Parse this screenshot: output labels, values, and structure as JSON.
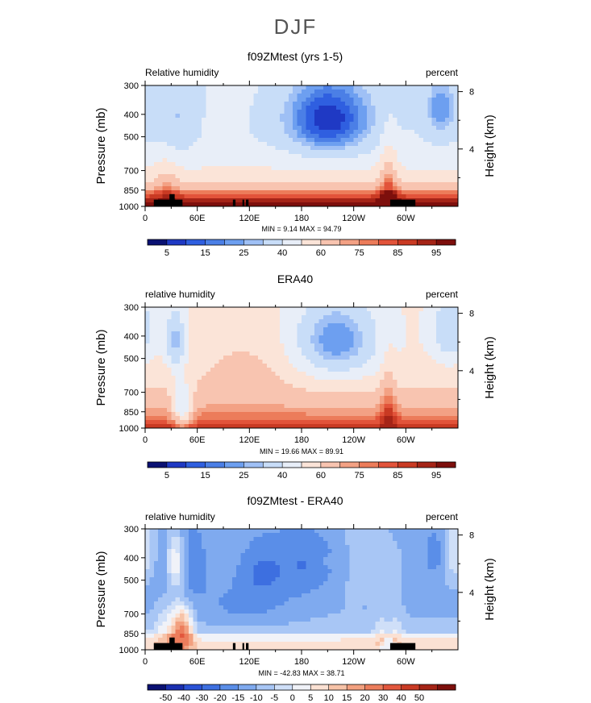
{
  "page_title": "DJF",
  "chart_data": [
    {
      "type": "heatmap",
      "title": "f09ZMtest (yrs 1-5)",
      "subtitle_left": "Relative humidity",
      "subtitle_right": "percent",
      "ylabel": "Pressure (mb)",
      "y2label": "Height (km)",
      "x_ticks": [
        "0",
        "60E",
        "120E",
        "180",
        "120W",
        "60W"
      ],
      "x_tick_lon": [
        0,
        60,
        120,
        180,
        240,
        300
      ],
      "xlim": [
        0,
        360
      ],
      "y_ticks": [
        300,
        400,
        500,
        700,
        850,
        1000
      ],
      "ylim": [
        1000,
        300
      ],
      "y2_ticks": [
        4,
        8
      ],
      "minmax_text": "MIN =    9.14   MAX =   94.79",
      "colorbar_labels": [
        "5",
        "15",
        "25",
        "40",
        "60",
        "75",
        "85",
        "95"
      ],
      "colorbar_colors": [
        "#0a1173",
        "#1f39c4",
        "#2f5fe0",
        "#4b7fe6",
        "#6d9ff0",
        "#9fc0f5",
        "#c8ddf8",
        "#e8eef8",
        "#fbe4d8",
        "#f8c4b0",
        "#f3a184",
        "#ec7c5a",
        "#e2533a",
        "#c93a23",
        "#a52417",
        "#7d0f0c"
      ],
      "topography": true,
      "field": "model"
    },
    {
      "type": "heatmap",
      "title": "ERA40",
      "subtitle_left": "relative humidity",
      "subtitle_right": "percent",
      "ylabel": "Pressure (mb)",
      "y2label": "Height (km)",
      "x_ticks": [
        "0",
        "60E",
        "120E",
        "180",
        "120W",
        "60W"
      ],
      "x_tick_lon": [
        0,
        60,
        120,
        180,
        240,
        300
      ],
      "xlim": [
        0,
        360
      ],
      "y_ticks": [
        300,
        400,
        500,
        700,
        850,
        1000
      ],
      "ylim": [
        1000,
        300
      ],
      "y2_ticks": [
        4,
        8
      ],
      "minmax_text": "MIN =   19.66   MAX =   89.91",
      "colorbar_labels": [
        "5",
        "15",
        "25",
        "40",
        "60",
        "75",
        "85",
        "95"
      ],
      "colorbar_colors": [
        "#0a1173",
        "#1f39c4",
        "#2f5fe0",
        "#4b7fe6",
        "#6d9ff0",
        "#9fc0f5",
        "#c8ddf8",
        "#e8eef8",
        "#fbe4d8",
        "#f8c4b0",
        "#f3a184",
        "#ec7c5a",
        "#e2533a",
        "#c93a23",
        "#a52417",
        "#7d0f0c"
      ],
      "topography": false,
      "field": "obs"
    },
    {
      "type": "heatmap",
      "title": "f09ZMtest - ERA40",
      "subtitle_left": "relative humidity",
      "subtitle_right": "percent",
      "ylabel": "Pressure (mb)",
      "y2label": "Height (km)",
      "x_ticks": [
        "0",
        "60E",
        "120E",
        "180",
        "120W",
        "60W"
      ],
      "x_tick_lon": [
        0,
        60,
        120,
        180,
        240,
        300
      ],
      "xlim": [
        0,
        360
      ],
      "y_ticks": [
        300,
        400,
        500,
        700,
        850,
        1000
      ],
      "ylim": [
        1000,
        300
      ],
      "y2_ticks": [
        4,
        8
      ],
      "minmax_text": "MIN =  -42.83   MAX =   38.71",
      "colorbar_labels": [
        "-50",
        "-40",
        "-30",
        "-20",
        "-15",
        "-10",
        "-5",
        "0",
        "5",
        "10",
        "15",
        "20",
        "30",
        "40",
        "50"
      ],
      "colorbar_colors": [
        "#0a1173",
        "#1a2fb0",
        "#2a52d6",
        "#3d6fe0",
        "#5a8ee8",
        "#7faaef",
        "#a8c6f5",
        "#cfdff8",
        "#f0f2f8",
        "#fbe1d3",
        "#f7c3a8",
        "#f2a07f",
        "#ec7d5c",
        "#e2573d",
        "#c93a24",
        "#a52416",
        "#7d0f0c"
      ],
      "topography": true,
      "field": "diff"
    }
  ]
}
